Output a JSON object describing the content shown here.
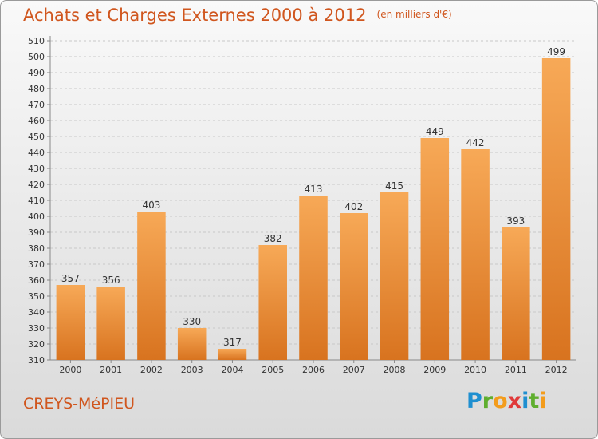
{
  "header": {
    "title": "Achats et Charges Externes 2000 à 2012",
    "subtitle": "(en milliers d'€)"
  },
  "footer": {
    "commune": "CREYS-MéPIEU",
    "brand": [
      "P",
      "r",
      "o",
      "x",
      "i",
      "t",
      "i"
    ]
  },
  "colors": {
    "title": "#d0561e",
    "bar_top": "#f7a957",
    "bar_bottom": "#d8731f",
    "grid": "#c8c8c8"
  },
  "chart_data": {
    "type": "bar",
    "title": "Achats et Charges Externes 2000 à 2012",
    "subtitle": "(en milliers d'€)",
    "xlabel": "",
    "ylabel": "",
    "categories": [
      "2000",
      "2001",
      "2002",
      "2003",
      "2004",
      "2005",
      "2006",
      "2007",
      "2008",
      "2009",
      "2010",
      "2011",
      "2012"
    ],
    "values": [
      357,
      356,
      403,
      330,
      317,
      382,
      413,
      402,
      415,
      449,
      442,
      393,
      499
    ],
    "data_labels": [
      "357",
      "356",
      "403",
      "330",
      "317",
      "382",
      "413",
      "402",
      "415",
      "449",
      "442",
      "393",
      "499"
    ],
    "ylim": [
      310,
      510
    ],
    "yticks": [
      310,
      320,
      330,
      340,
      350,
      360,
      370,
      380,
      390,
      400,
      410,
      420,
      430,
      440,
      450,
      460,
      470,
      480,
      490,
      500,
      510
    ],
    "grid": true,
    "legend": "none"
  }
}
